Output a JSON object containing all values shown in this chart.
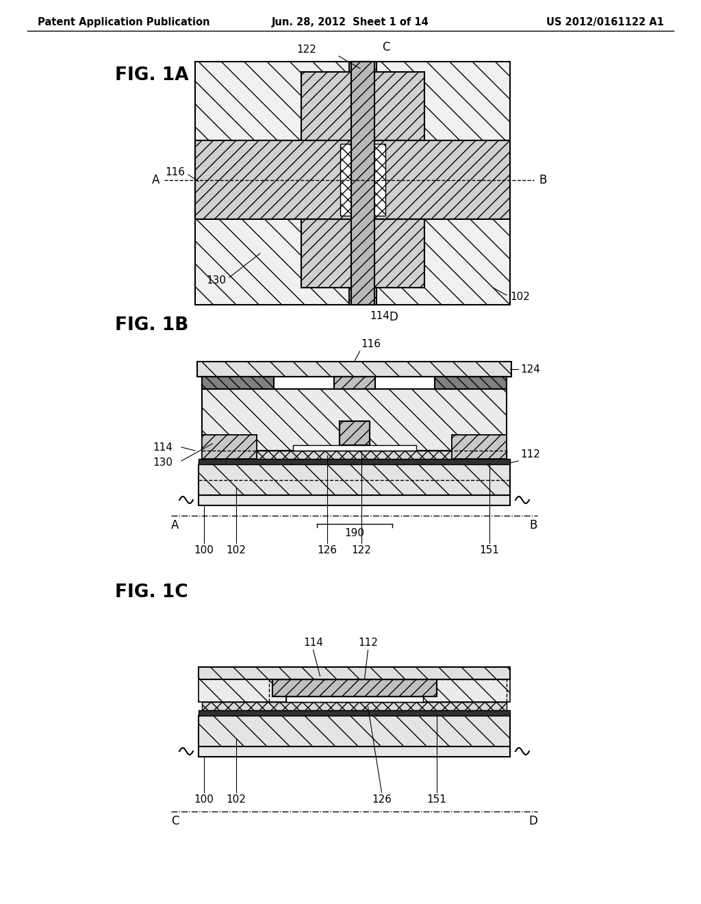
{
  "title_left": "Patent Application Publication",
  "title_center": "Jun. 28, 2012  Sheet 1 of 14",
  "title_right": "US 2012/0161122 A1",
  "bg_color": "#ffffff"
}
